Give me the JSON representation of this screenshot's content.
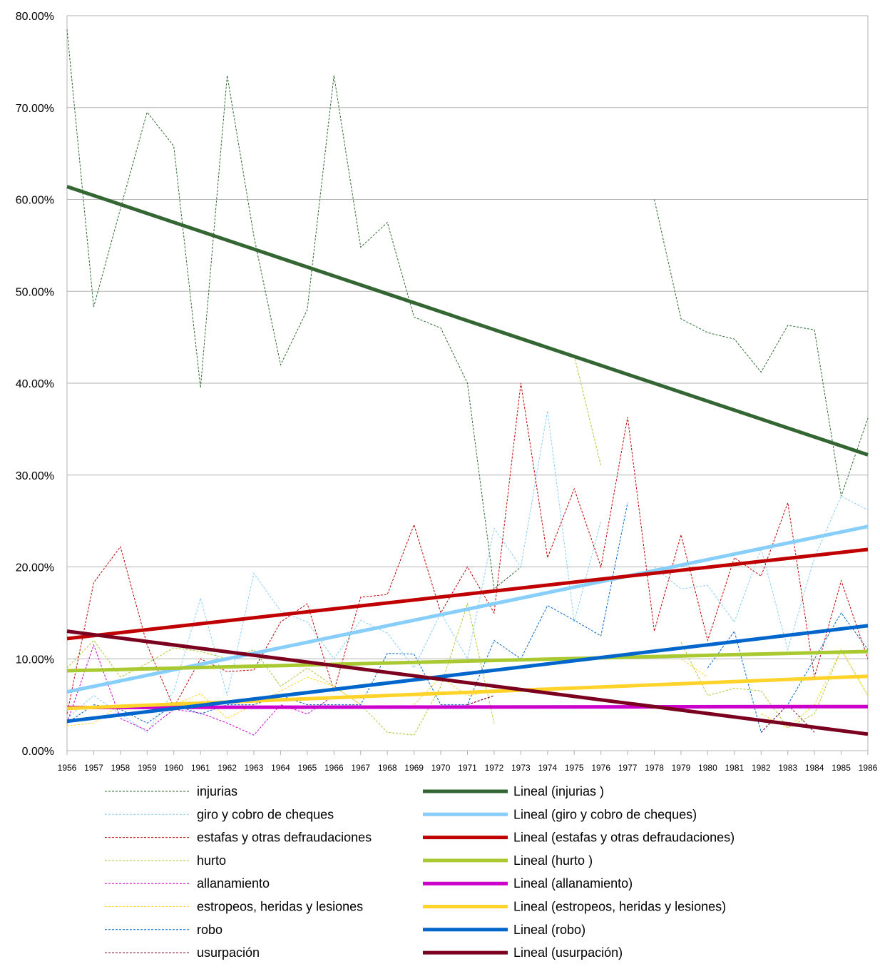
{
  "chart_data": {
    "type": "line",
    "title": "",
    "xlabel": "",
    "ylabel": "",
    "ylim": [
      0,
      0.8
    ],
    "y_ticks": [
      0,
      0.1,
      0.2,
      0.3,
      0.4,
      0.5,
      0.6,
      0.7,
      0.8
    ],
    "y_tick_labels": [
      "0.00%",
      "10.00%",
      "20.00%",
      "30.00%",
      "40.00%",
      "50.00%",
      "60.00%",
      "70.00%",
      "80.00%"
    ],
    "grid": true,
    "legend_position": "bottom",
    "categories": [
      "1956",
      "1957",
      "1958",
      "1959",
      "1960",
      "1961",
      "1962",
      "1963",
      "1964",
      "1965",
      "1966",
      "1967",
      "1968",
      "1969",
      "1970",
      "1971",
      "1972",
      "1973",
      "1974",
      "1975",
      "1976",
      "1977",
      "1978",
      "1979",
      "1980",
      "1981",
      "1982",
      "1983",
      "1984",
      "1985",
      "1986"
    ],
    "series": [
      {
        "name": "injurias",
        "color": "#2d6a2d",
        "style": "dashed",
        "values": [
          0.785,
          0.483,
          0.59,
          0.695,
          0.658,
          0.395,
          0.735,
          0.56,
          0.42,
          0.48,
          0.735,
          0.548,
          0.575,
          0.472,
          0.46,
          0.4,
          0.176,
          0.2,
          null,
          null,
          null,
          null,
          0.6,
          0.47,
          0.455,
          0.448,
          0.412,
          0.463,
          0.458,
          0.277,
          0.362
        ]
      },
      {
        "name": "giro y cobro de cheques",
        "color": "#87cefa",
        "style": "dashed",
        "values": [
          0.035,
          0.06,
          0.04,
          0.02,
          0.065,
          0.166,
          0.06,
          0.193,
          0.152,
          0.14,
          0.1,
          0.142,
          0.128,
          0.09,
          0.15,
          0.1,
          0.242,
          0.2,
          0.37,
          0.14,
          0.25,
          null,
          0.2,
          0.176,
          0.18,
          0.14,
          0.22,
          0.11,
          0.21,
          0.277,
          0.262
        ]
      },
      {
        "name": "estafas y otras defraudaciones",
        "color": "#c00000",
        "style": "dashed",
        "values": [
          0.04,
          0.183,
          0.222,
          0.115,
          0.047,
          0.1,
          0.086,
          0.088,
          0.14,
          0.16,
          0.065,
          0.167,
          0.17,
          0.246,
          0.15,
          0.2,
          0.15,
          0.4,
          0.21,
          0.285,
          0.2,
          0.363,
          0.13,
          0.235,
          0.12,
          0.21,
          0.19,
          0.27,
          0.08,
          0.185,
          0.1
        ]
      },
      {
        "name": "hurto",
        "color": "#a9c931",
        "style": "dashed",
        "values": [
          0.09,
          0.12,
          0.08,
          0.095,
          0.112,
          0.108,
          0.1,
          0.11,
          0.07,
          0.09,
          0.07,
          0.05,
          0.02,
          0.017,
          0.07,
          0.16,
          0.03,
          null,
          null,
          0.43,
          0.31,
          null,
          null,
          0.118,
          0.06,
          0.068,
          0.065,
          0.025,
          0.04,
          0.11,
          0.06
        ]
      },
      {
        "name": "allanamiento",
        "color": "#cc00cc",
        "style": "dashed",
        "values": [
          0.03,
          0.115,
          0.035,
          0.022,
          0.045,
          0.041,
          0.03,
          0.017,
          0.05,
          0.04,
          0.06,
          null,
          null,
          null,
          null,
          0.05,
          0.06,
          null,
          null,
          null,
          null,
          null,
          null,
          null,
          null,
          null,
          null,
          null,
          null,
          null,
          null
        ]
      },
      {
        "name": "estropeos, heridas y lesiones",
        "color": "#ffd32a",
        "style": "dashed",
        "values": [
          0.027,
          0.03,
          0.05,
          0.05,
          0.05,
          0.062,
          0.035,
          0.05,
          0.065,
          0.08,
          0.07,
          0.05,
          null,
          0.05,
          0.08,
          0.06,
          0.065,
          null,
          null,
          null,
          null,
          null,
          null,
          0.1,
          0.08,
          null,
          0.04,
          0.025,
          0.05,
          0.11,
          0.06
        ]
      },
      {
        "name": "robo",
        "color": "#0066cc",
        "style": "dashed",
        "values": [
          0.03,
          0.05,
          0.045,
          0.03,
          0.05,
          0.04,
          0.05,
          0.05,
          0.06,
          0.05,
          0.05,
          0.05,
          0.106,
          0.105,
          0.05,
          0.05,
          0.12,
          0.1,
          0.158,
          0.142,
          0.125,
          0.27,
          null,
          null,
          0.09,
          0.13,
          0.02,
          0.05,
          0.1,
          0.15,
          0.11
        ]
      },
      {
        "name": "usurpación",
        "color": "#7b0020",
        "style": "dashed",
        "values": [
          null,
          null,
          null,
          null,
          null,
          null,
          null,
          null,
          null,
          null,
          null,
          null,
          null,
          null,
          null,
          0.05,
          0.06,
          null,
          null,
          null,
          null,
          null,
          null,
          null,
          null,
          null,
          0.02,
          0.05,
          0.02,
          null,
          null
        ]
      }
    ],
    "trendlines": [
      {
        "name": "Lineal (injurias  )",
        "color": "#336633",
        "start": 0.614,
        "end": 0.322
      },
      {
        "name": "Lineal (giro y cobro de cheques)",
        "color": "#87cefa",
        "start": 0.064,
        "end": 0.244
      },
      {
        "name": "Lineal (estafas y otras defraudaciones)",
        "color": "#c00000",
        "start": 0.122,
        "end": 0.219
      },
      {
        "name": "Lineal (hurto  )",
        "color": "#a9c931",
        "start": 0.087,
        "end": 0.108
      },
      {
        "name": "Lineal (allanamiento)",
        "color": "#cc00cc",
        "start": 0.047,
        "end": 0.048
      },
      {
        "name": "Lineal (estropeos, heridas y lesiones)",
        "color": "#ffd32a",
        "start": 0.046,
        "end": 0.081
      },
      {
        "name": "Lineal (robo)",
        "color": "#0066cc",
        "start": 0.032,
        "end": 0.136
      },
      {
        "name": "Lineal (usurpación)",
        "color": "#7b0020",
        "start": 0.13,
        "end": 0.018
      }
    ]
  }
}
